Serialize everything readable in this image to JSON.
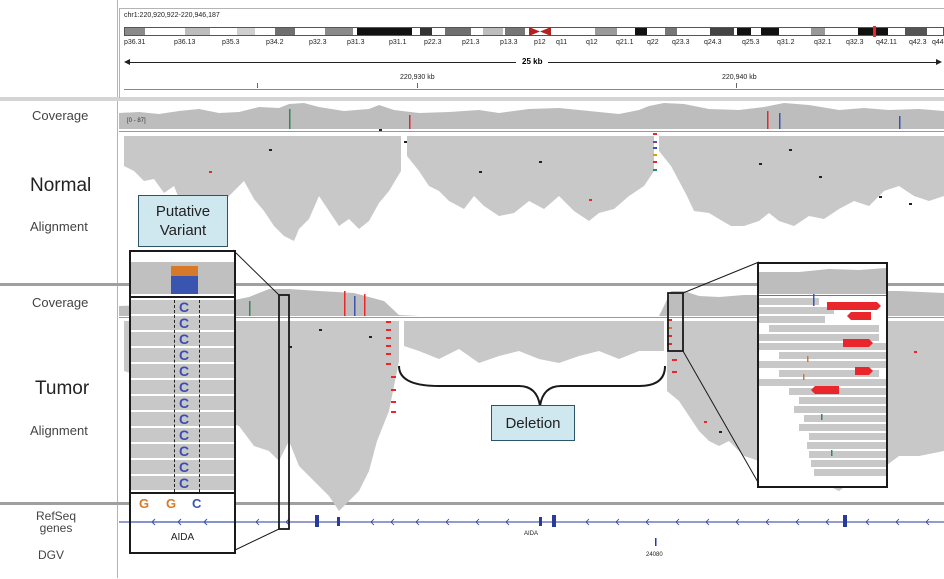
{
  "header": {
    "locus": "chr1:220,920,922-220,946,187",
    "bands": [
      "p36.31",
      "p36.13",
      "p35.3",
      "p34.2",
      "p32.3",
      "p31.3",
      "p31.1",
      "p22.3",
      "p21.3",
      "p13.3",
      "p12",
      "q11",
      "q12",
      "q21.1",
      "q22",
      "q23.3",
      "q24.3",
      "q25.3",
      "q31.2",
      "q32.1",
      "q32.3",
      "q42.11",
      "q42.3",
      "q44"
    ],
    "span_label": "25 kb",
    "ruler": [
      "220,930 kb",
      "220,940 kb"
    ]
  },
  "tracks": {
    "normal_coverage": "Coverage",
    "normal_title": "Normal",
    "normal_alignment": "Alignment",
    "tumor_coverage": "Coverage",
    "tumor_title": "Tumor",
    "tumor_alignment": "Alignment",
    "refseq": "RefSeq\ngenes",
    "dgv": "DGV",
    "coverage_range": "[0 - 87]"
  },
  "annotations": {
    "putative_variant": "Putative\nVariant",
    "deletion": "Deletion"
  },
  "inset": {
    "bases": [
      "G",
      "G",
      "C"
    ],
    "read_base": "C",
    "gene": "AIDA"
  },
  "features": {
    "gene_label": "AIDA",
    "dgv_label": "24080"
  },
  "colors": {
    "read_gray": "#c8c8c8",
    "coverage_gray": "#bdbdbd",
    "callout_fill": "#cfe8ef",
    "gene_blue": "#2a3a9a",
    "mismatch_red": "#e8262b",
    "variant_orange": "#d67a2a",
    "variant_blue": "#3a55b0"
  }
}
